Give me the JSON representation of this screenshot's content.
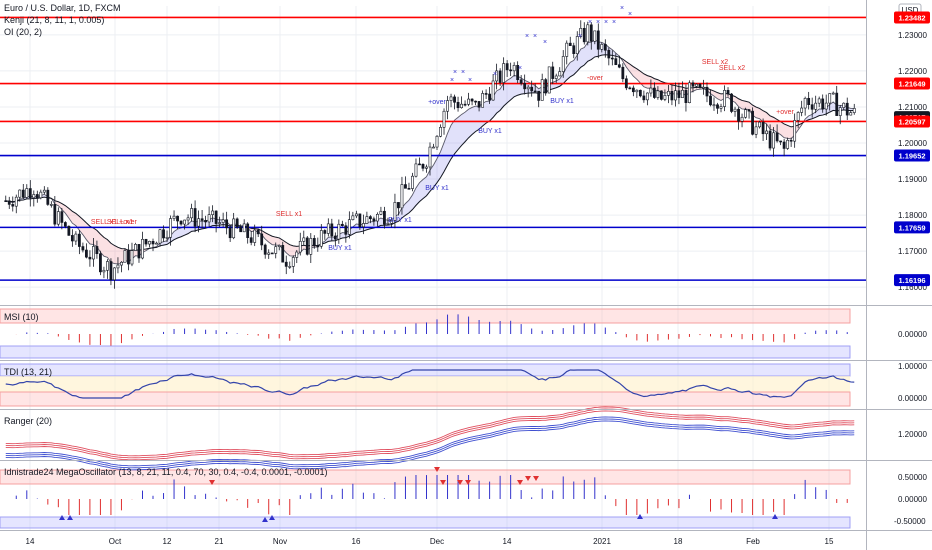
{
  "header": {
    "title": "Euro / U.S. Dollar, 1D, FXCM",
    "indicator1": "Kenji (21, 8, 11, 1, 0.005)",
    "indicator2": "OI (20, 2)",
    "currency_button": "USD"
  },
  "colors": {
    "bull": "#ffffff",
    "bear": "#131722",
    "red_level": "#ff0000",
    "blue_level": "#0000cc",
    "signal_blue": "#3333cc",
    "signal_red": "#e03030",
    "grid": "#eceff3"
  },
  "chart_data": [
    {
      "type": "candlestick",
      "title": "Euro / U.S. Dollar, 1D, FXCM",
      "ylim": [
        1.157,
        1.238
      ],
      "y_ticks": [
        "1.23000",
        "1.22000",
        "1.21000",
        "1.20000",
        "1.19000",
        "1.18000",
        "1.17000",
        "1.16000"
      ],
      "x_ticks": [
        "14",
        "Oct",
        "12",
        "21",
        "Nov",
        "16",
        "Dec",
        "14",
        "2021",
        "18",
        "Feb",
        "15"
      ],
      "price_labels": [
        "1.23482",
        "1.21649",
        "1.20717",
        "1.20597",
        "1.19652",
        "1.17659",
        "1.16196"
      ],
      "levels": [
        {
          "value": 1.23482,
          "color": "red"
        },
        {
          "value": 1.21649,
          "color": "red"
        },
        {
          "value": 1.20597,
          "color": "red"
        },
        {
          "value": 1.19652,
          "color": "blue"
        },
        {
          "value": 1.17659,
          "color": "blue"
        },
        {
          "value": 1.16196,
          "color": "blue"
        }
      ],
      "annotations": [
        {
          "text": "SELL x1",
          "color": "red"
        },
        {
          "text": "SELL x1",
          "color": "red"
        },
        {
          "text": "SELL x1",
          "color": "red"
        },
        {
          "text": "+over",
          "color": "red"
        },
        {
          "text": "BUY x1",
          "color": "blue"
        },
        {
          "text": "BUY x1",
          "color": "blue"
        },
        {
          "text": "BUY x1",
          "color": "blue"
        },
        {
          "text": "+over",
          "color": "blue"
        },
        {
          "text": "BUY x1",
          "color": "blue"
        },
        {
          "text": "BUY x1",
          "color": "blue"
        },
        {
          "text": "-over",
          "color": "red"
        },
        {
          "text": "SELL x2",
          "color": "red"
        },
        {
          "text": "SELL x2",
          "color": "red"
        },
        {
          "text": "+over",
          "color": "red"
        }
      ]
    },
    {
      "type": "bar",
      "title": "MSI (10)",
      "y_ticks": [
        "0.00000"
      ]
    },
    {
      "type": "line",
      "title": "TDI (13, 21)",
      "y_ticks": [
        "1.00000",
        "0.00000"
      ]
    },
    {
      "type": "line",
      "title": "Ranger (20)",
      "y_ticks": [
        "1.20000"
      ]
    },
    {
      "type": "bar",
      "title": "Idnistrade24 MegaOscillator (13, 8, 21, 11, 0.4, 70, 30, 0.4, -0.4, 0.0001, -0.0001)",
      "y_ticks": [
        "0.50000",
        "0.00000",
        "-0.50000"
      ]
    }
  ]
}
